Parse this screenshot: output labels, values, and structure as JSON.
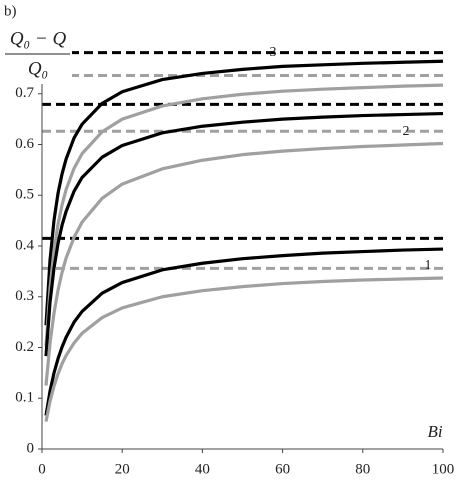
{
  "chart_data": {
    "type": "line",
    "panel_label": "b)",
    "y_label": {
      "numerator": "Q₀ − Q",
      "denominator": "Q₀"
    },
    "x_label": "Bi",
    "xlim": [
      0,
      100
    ],
    "xticks": [
      0,
      20,
      40,
      60,
      80,
      100
    ],
    "ylim": [
      0,
      0.8
    ],
    "yticks": [
      0,
      0.1,
      0.2,
      0.3,
      0.4,
      0.5,
      0.6,
      0.7
    ],
    "x": [
      1,
      2,
      3,
      4,
      5,
      6,
      8,
      10,
      15,
      20,
      30,
      40,
      50,
      60,
      70,
      80,
      90,
      100
    ],
    "series": [
      {
        "color": "#000000",
        "values": [
          0.244,
          0.372,
          0.451,
          0.504,
          0.542,
          0.571,
          0.613,
          0.64,
          0.681,
          0.704,
          0.728,
          0.74,
          0.748,
          0.754,
          0.757,
          0.76,
          0.762,
          0.764
        ]
      },
      {
        "color": "#a0a0a0",
        "values": [
          0.202,
          0.317,
          0.391,
          0.443,
          0.481,
          0.511,
          0.553,
          0.582,
          0.625,
          0.65,
          0.676,
          0.69,
          0.699,
          0.705,
          0.709,
          0.712,
          0.715,
          0.717
        ]
      },
      {
        "color": "#000000",
        "values": [
          0.183,
          0.289,
          0.357,
          0.405,
          0.441,
          0.468,
          0.508,
          0.535,
          0.575,
          0.598,
          0.623,
          0.636,
          0.644,
          0.65,
          0.654,
          0.657,
          0.659,
          0.661
        ]
      },
      {
        "color": "#a0a0a0",
        "values": [
          0.125,
          0.209,
          0.268,
          0.313,
          0.348,
          0.376,
          0.417,
          0.447,
          0.494,
          0.522,
          0.552,
          0.569,
          0.58,
          0.587,
          0.592,
          0.596,
          0.599,
          0.602
        ]
      },
      {
        "color": "#000000",
        "values": [
          0.066,
          0.114,
          0.15,
          0.178,
          0.201,
          0.22,
          0.25,
          0.271,
          0.307,
          0.328,
          0.353,
          0.366,
          0.375,
          0.381,
          0.386,
          0.389,
          0.392,
          0.394
        ]
      },
      {
        "color": "#a0a0a0",
        "values": [
          0.054,
          0.094,
          0.124,
          0.148,
          0.168,
          0.184,
          0.209,
          0.228,
          0.259,
          0.278,
          0.3,
          0.312,
          0.32,
          0.326,
          0.33,
          0.333,
          0.335,
          0.337
        ]
      }
    ],
    "reference_lines": [
      {
        "value": 0.781,
        "color": "#000000"
      },
      {
        "value": 0.736,
        "color": "#a0a0a0"
      },
      {
        "value": 0.679,
        "color": "#000000"
      },
      {
        "value": 0.626,
        "color": "#a0a0a0"
      },
      {
        "value": 0.415,
        "color": "#000000"
      },
      {
        "value": 0.356,
        "color": "#a0a0a0"
      }
    ],
    "annotations": [
      "3",
      "2",
      "1"
    ]
  }
}
